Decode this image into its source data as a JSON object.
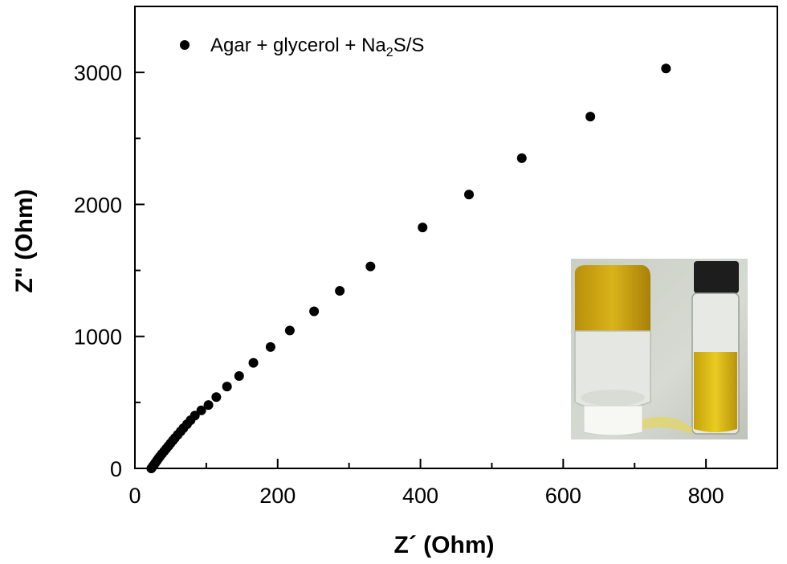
{
  "chart_data": {
    "type": "scatter",
    "xlabel": "Z´ (Ohm)",
    "ylabel": "Z\" (Ohm)",
    "xlim": [
      0,
      900
    ],
    "ylim": [
      0,
      3500
    ],
    "x_ticks": [
      "0",
      "200",
      "400",
      "600",
      "800"
    ],
    "y_ticks": [
      "0",
      "1000",
      "2000",
      "3000"
    ],
    "x_tick_values": [
      0,
      200,
      400,
      600,
      800
    ],
    "y_tick_values": [
      0,
      1000,
      2000,
      3000
    ],
    "grid": false,
    "legend_position": "top-left",
    "series": [
      {
        "name": "Agar + glycerol + Na2S/S",
        "legend_main": "Agar + glycerol + Na",
        "legend_sub": "2",
        "legend_tail": "S/S",
        "color": "#000000",
        "points": [
          [
            23,
            0
          ],
          [
            25,
            15
          ],
          [
            27,
            30
          ],
          [
            29,
            45
          ],
          [
            31,
            60
          ],
          [
            33,
            75
          ],
          [
            35,
            90
          ],
          [
            38,
            110
          ],
          [
            41,
            130
          ],
          [
            44,
            150
          ],
          [
            47,
            170
          ],
          [
            50,
            190
          ],
          [
            53,
            210
          ],
          [
            56,
            230
          ],
          [
            60,
            255
          ],
          [
            64,
            280
          ],
          [
            68,
            305
          ],
          [
            73,
            335
          ],
          [
            78,
            365
          ],
          [
            84,
            400
          ],
          [
            93,
            440
          ],
          [
            103,
            480
          ],
          [
            114,
            540
          ],
          [
            129,
            620
          ],
          [
            146,
            700
          ],
          [
            166,
            800
          ],
          [
            190,
            920
          ],
          [
            217,
            1045
          ],
          [
            251,
            1190
          ],
          [
            287,
            1345
          ],
          [
            330,
            1530
          ],
          [
            403,
            1825
          ],
          [
            468,
            2075
          ],
          [
            542,
            2350
          ],
          [
            638,
            2665
          ],
          [
            744,
            3030
          ]
        ]
      }
    ]
  },
  "inset": {
    "description_name": "inset-photo-vials"
  }
}
